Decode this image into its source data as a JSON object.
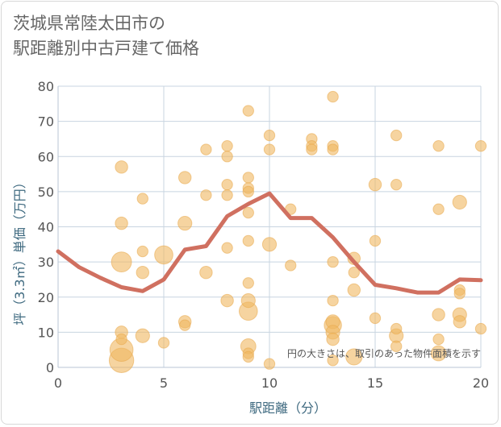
{
  "title_lines": [
    "茨城県常陸太田市の",
    "駅距離別中古戸建て価格"
  ],
  "note": "円の大きさは、取引のあった物件面積を示す",
  "chart_data": {
    "type": "scatter",
    "xlabel": "駅距離（分）",
    "ylabel": "坪（3.3㎡）単価（万円）",
    "xlim": [
      0,
      20
    ],
    "ylim": [
      0,
      80
    ],
    "xticks": [
      0,
      5,
      10,
      15,
      20
    ],
    "yticks": [
      0,
      10,
      20,
      30,
      40,
      50,
      60,
      70,
      80
    ],
    "grid": true,
    "colors": {
      "bubble": "#f0b860",
      "bubble_edge": "#e8a84a",
      "line": "#d07060",
      "grid": "#c8d4e0",
      "axis_text": "#3f6a80"
    },
    "series": [
      {
        "kind": "bubbles",
        "points": [
          {
            "x": 3,
            "y": 57,
            "size": 3
          },
          {
            "x": 3,
            "y": 41,
            "size": 3
          },
          {
            "x": 3,
            "y": 30,
            "size": 10
          },
          {
            "x": 3,
            "y": 10,
            "size": 3
          },
          {
            "x": 3,
            "y": 8,
            "size": 2
          },
          {
            "x": 3,
            "y": 5,
            "size": 14
          },
          {
            "x": 3,
            "y": 2,
            "size": 16
          },
          {
            "x": 4,
            "y": 48,
            "size": 2
          },
          {
            "x": 4,
            "y": 33,
            "size": 2
          },
          {
            "x": 4,
            "y": 27,
            "size": 3
          },
          {
            "x": 4,
            "y": 9,
            "size": 4
          },
          {
            "x": 5,
            "y": 32,
            "size": 8
          },
          {
            "x": 5,
            "y": 7,
            "size": 2
          },
          {
            "x": 6,
            "y": 54,
            "size": 3
          },
          {
            "x": 6,
            "y": 41,
            "size": 4
          },
          {
            "x": 6,
            "y": 13,
            "size": 3
          },
          {
            "x": 6,
            "y": 12,
            "size": 2
          },
          {
            "x": 7,
            "y": 62,
            "size": 2
          },
          {
            "x": 7,
            "y": 49,
            "size": 2
          },
          {
            "x": 7,
            "y": 27,
            "size": 3
          },
          {
            "x": 8,
            "y": 63,
            "size": 2
          },
          {
            "x": 8,
            "y": 60,
            "size": 2
          },
          {
            "x": 8,
            "y": 52,
            "size": 2
          },
          {
            "x": 8,
            "y": 49,
            "size": 2
          },
          {
            "x": 8,
            "y": 34,
            "size": 2
          },
          {
            "x": 8,
            "y": 19,
            "size": 3
          },
          {
            "x": 9,
            "y": 73,
            "size": 2
          },
          {
            "x": 9,
            "y": 54,
            "size": 2
          },
          {
            "x": 9,
            "y": 51,
            "size": 2
          },
          {
            "x": 9,
            "y": 50,
            "size": 2
          },
          {
            "x": 9,
            "y": 44,
            "size": 2
          },
          {
            "x": 9,
            "y": 36,
            "size": 2
          },
          {
            "x": 9,
            "y": 24,
            "size": 2
          },
          {
            "x": 9,
            "y": 19,
            "size": 4
          },
          {
            "x": 9,
            "y": 16,
            "size": 8
          },
          {
            "x": 9,
            "y": 6,
            "size": 5
          },
          {
            "x": 9,
            "y": 4,
            "size": 2
          },
          {
            "x": 9,
            "y": 3,
            "size": 2
          },
          {
            "x": 10,
            "y": 66,
            "size": 2
          },
          {
            "x": 10,
            "y": 62,
            "size": 2
          },
          {
            "x": 10,
            "y": 35,
            "size": 4
          },
          {
            "x": 10,
            "y": 1,
            "size": 2
          },
          {
            "x": 11,
            "y": 45,
            "size": 2
          },
          {
            "x": 11,
            "y": 29,
            "size": 2
          },
          {
            "x": 12,
            "y": 65,
            "size": 2
          },
          {
            "x": 12,
            "y": 63,
            "size": 2
          },
          {
            "x": 12,
            "y": 62,
            "size": 2
          },
          {
            "x": 13,
            "y": 77,
            "size": 2
          },
          {
            "x": 13,
            "y": 63,
            "size": 2
          },
          {
            "x": 13,
            "y": 62,
            "size": 2
          },
          {
            "x": 13,
            "y": 30,
            "size": 2
          },
          {
            "x": 13,
            "y": 19,
            "size": 2
          },
          {
            "x": 13,
            "y": 13,
            "size": 4
          },
          {
            "x": 13,
            "y": 12,
            "size": 7
          },
          {
            "x": 13,
            "y": 10,
            "size": 4
          },
          {
            "x": 13,
            "y": 8,
            "size": 3
          },
          {
            "x": 13,
            "y": 2,
            "size": 2
          },
          {
            "x": 14,
            "y": 31,
            "size": 3
          },
          {
            "x": 14,
            "y": 27,
            "size": 2
          },
          {
            "x": 14,
            "y": 22,
            "size": 3
          },
          {
            "x": 14,
            "y": 3,
            "size": 6
          },
          {
            "x": 15,
            "y": 52,
            "size": 3
          },
          {
            "x": 15,
            "y": 36,
            "size": 2
          },
          {
            "x": 15,
            "y": 14,
            "size": 2
          },
          {
            "x": 16,
            "y": 66,
            "size": 2
          },
          {
            "x": 16,
            "y": 52,
            "size": 2
          },
          {
            "x": 16,
            "y": 11,
            "size": 2
          },
          {
            "x": 16,
            "y": 9,
            "size": 4
          },
          {
            "x": 16,
            "y": 6,
            "size": 2
          },
          {
            "x": 18,
            "y": 63,
            "size": 2
          },
          {
            "x": 18,
            "y": 45,
            "size": 2
          },
          {
            "x": 18,
            "y": 15,
            "size": 3
          },
          {
            "x": 18,
            "y": 8,
            "size": 2
          },
          {
            "x": 18,
            "y": 4,
            "size": 5
          },
          {
            "x": 19,
            "y": 47,
            "size": 4
          },
          {
            "x": 19,
            "y": 22,
            "size": 2
          },
          {
            "x": 19,
            "y": 21,
            "size": 2
          },
          {
            "x": 19,
            "y": 15,
            "size": 4
          },
          {
            "x": 19,
            "y": 13,
            "size": 3
          },
          {
            "x": 20,
            "y": 63,
            "size": 2
          },
          {
            "x": 20,
            "y": 11,
            "size": 2
          }
        ]
      },
      {
        "kind": "line",
        "x": [
          0,
          1,
          2,
          3,
          4,
          5,
          6,
          7,
          8,
          9,
          10,
          11,
          12,
          13,
          14,
          15,
          16,
          17,
          18,
          19,
          20
        ],
        "y": [
          33,
          28.5,
          25.5,
          22.8,
          21.7,
          25,
          33.5,
          34.5,
          43,
          46.5,
          49.5,
          42.5,
          42.5,
          37,
          30,
          23.5,
          22.5,
          21.3,
          21.3,
          25,
          24.8
        ]
      }
    ]
  }
}
